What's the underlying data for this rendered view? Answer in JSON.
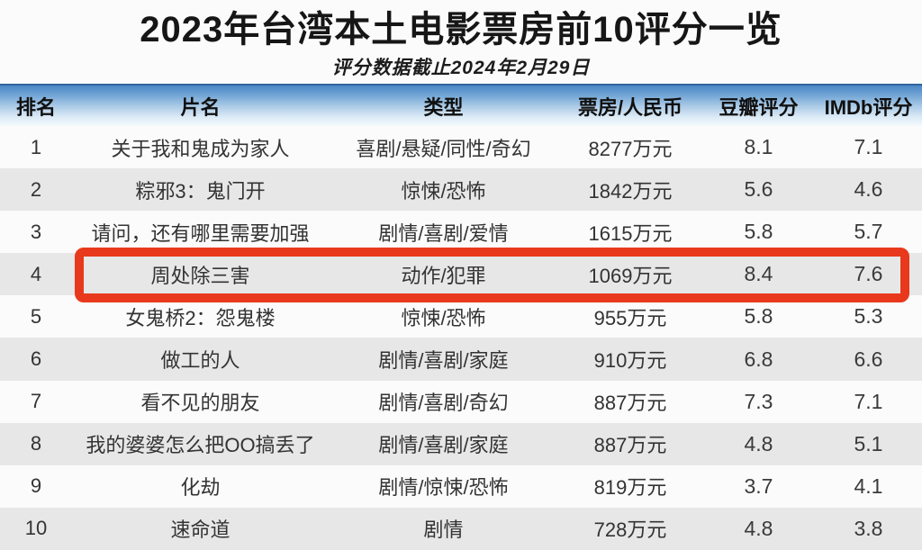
{
  "title": "2023年台湾本土电影票房前10评分一览",
  "subtitle": "评分数据截止2024年2月29日",
  "colors": {
    "highlight_border": "#e8391c",
    "header_gradient_top": "#4c87c4",
    "row_alt_gray": "#e7e7e7",
    "text_dark": "#333333"
  },
  "table": {
    "columns": [
      "排名",
      "片名",
      "类型",
      "票房/人民币",
      "豆瓣评分",
      "IMDb评分"
    ],
    "highlighted_rank": "4",
    "rows": [
      {
        "rank": "1",
        "title": "关于我和鬼成为家人",
        "genre": "喜剧/悬疑/同性/奇幻",
        "box_office": "8277万元",
        "douban": "8.1",
        "imdb": "7.1"
      },
      {
        "rank": "2",
        "title": "粽邪3：鬼门开",
        "genre": "惊悚/恐怖",
        "box_office": "1842万元",
        "douban": "5.6",
        "imdb": "4.6"
      },
      {
        "rank": "3",
        "title": "请问，还有哪里需要加强",
        "genre": "剧情/喜剧/爱情",
        "box_office": "1615万元",
        "douban": "5.8",
        "imdb": "5.7"
      },
      {
        "rank": "4",
        "title": "周处除三害",
        "genre": "动作/犯罪",
        "box_office": "1069万元",
        "douban": "8.4",
        "imdb": "7.6"
      },
      {
        "rank": "5",
        "title": "女鬼桥2：怨鬼楼",
        "genre": "惊悚/恐怖",
        "box_office": "955万元",
        "douban": "5.8",
        "imdb": "5.3"
      },
      {
        "rank": "6",
        "title": "做工的人",
        "genre": "剧情/喜剧/家庭",
        "box_office": "910万元",
        "douban": "6.8",
        "imdb": "6.6"
      },
      {
        "rank": "7",
        "title": "看不见的朋友",
        "genre": "剧情/喜剧/奇幻",
        "box_office": "887万元",
        "douban": "7.3",
        "imdb": "7.1"
      },
      {
        "rank": "8",
        "title": "我的婆婆怎么把OO搞丢了",
        "genre": "剧情/喜剧/家庭",
        "box_office": "887万元",
        "douban": "4.8",
        "imdb": "5.1"
      },
      {
        "rank": "9",
        "title": "化劫",
        "genre": "剧情/惊悚/恐怖",
        "box_office": "819万元",
        "douban": "3.7",
        "imdb": "4.1"
      },
      {
        "rank": "10",
        "title": "速命道",
        "genre": "剧情",
        "box_office": "728万元",
        "douban": "4.8",
        "imdb": "3.8"
      }
    ]
  },
  "chart_data": {
    "type": "table",
    "title": "2023年台湾本土电影票房前10评分一览",
    "subtitle": "评分数据截止2024年2月29日",
    "columns": [
      "排名",
      "片名",
      "类型",
      "票房/人民币",
      "豆瓣评分",
      "IMDb评分"
    ],
    "rows": [
      [
        "1",
        "关于我和鬼成为家人",
        "喜剧/悬疑/同性/奇幻",
        "8277万元",
        8.1,
        7.1
      ],
      [
        "2",
        "粽邪3：鬼门开",
        "惊悚/恐怖",
        "1842万元",
        5.6,
        4.6
      ],
      [
        "3",
        "请问，还有哪里需要加强",
        "剧情/喜剧/爱情",
        "1615万元",
        5.8,
        5.7
      ],
      [
        "4",
        "周处除三害",
        "动作/犯罪",
        "1069万元",
        8.4,
        7.6
      ],
      [
        "5",
        "女鬼桥2：怨鬼楼",
        "惊悚/恐怖",
        "955万元",
        5.8,
        5.3
      ],
      [
        "6",
        "做工的人",
        "剧情/喜剧/家庭",
        "910万元",
        6.8,
        6.6
      ],
      [
        "7",
        "看不见的朋友",
        "剧情/喜剧/奇幻",
        "887万元",
        7.3,
        7.1
      ],
      [
        "8",
        "我的婆婆怎么把OO搞丢了",
        "剧情/喜剧/家庭",
        "887万元",
        4.8,
        5.1
      ],
      [
        "9",
        "化劫",
        "剧情/惊悚/恐怖",
        "819万元",
        3.7,
        4.1
      ],
      [
        "10",
        "速命道",
        "剧情",
        "728万元",
        4.8,
        3.8
      ]
    ],
    "annotations": [
      "row 4 (周处除三害) outlined with thick red-orange box"
    ],
    "layout": {
      "row_striping": "white/gray alternating",
      "header_style": "blue gradient band"
    }
  }
}
